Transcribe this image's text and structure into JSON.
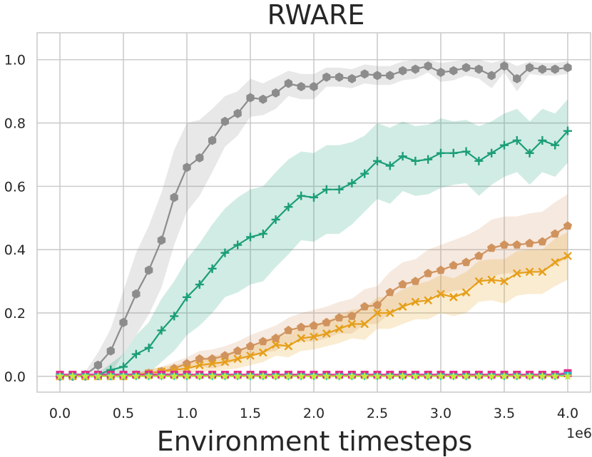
{
  "chart_data": {
    "type": "line",
    "title": "RWARE",
    "xlabel": "Environment timesteps",
    "ylabel": "",
    "x_offset_label": "1e6",
    "xlim": [
      -0.18,
      4.18
    ],
    "ylim": [
      -0.05,
      1.085
    ],
    "xticks": [
      0.0,
      0.5,
      1.0,
      1.5,
      2.0,
      2.5,
      3.0,
      3.5,
      4.0
    ],
    "xtick_labels": [
      "0.0",
      "0.5",
      "1.0",
      "1.5",
      "2.0",
      "2.5",
      "3.0",
      "3.5",
      "4.0"
    ],
    "yticks": [
      0.0,
      0.2,
      0.4,
      0.6,
      0.8,
      1.0
    ],
    "ytick_labels": [
      "0.0",
      "0.2",
      "0.4",
      "0.6",
      "0.8",
      "1.0"
    ],
    "grid": true,
    "x": [
      0.0,
      0.1,
      0.2,
      0.3,
      0.4,
      0.5,
      0.6,
      0.7,
      0.8,
      0.9,
      1.0,
      1.1,
      1.2,
      1.3,
      1.4,
      1.5,
      1.6,
      1.7,
      1.8,
      1.9,
      2.0,
      2.1,
      2.2,
      2.3,
      2.4,
      2.5,
      2.6,
      2.7,
      2.8,
      2.9,
      3.0,
      3.1,
      3.2,
      3.3,
      3.4,
      3.5,
      3.6,
      3.7,
      3.8,
      3.9,
      4.0
    ],
    "series": [
      {
        "color": "#8c8c8c",
        "marker": "hexagon",
        "values": [
          0.0,
          0.0,
          0.005,
          0.035,
          0.08,
          0.17,
          0.26,
          0.335,
          0.43,
          0.565,
          0.66,
          0.69,
          0.745,
          0.805,
          0.83,
          0.88,
          0.875,
          0.895,
          0.925,
          0.915,
          0.915,
          0.945,
          0.945,
          0.94,
          0.955,
          0.95,
          0.95,
          0.965,
          0.97,
          0.98,
          0.96,
          0.965,
          0.975,
          0.97,
          0.95,
          0.98,
          0.94,
          0.975,
          0.97,
          0.97,
          0.975
        ],
        "spread": [
          0.0,
          0.005,
          0.01,
          0.04,
          0.07,
          0.1,
          0.13,
          0.14,
          0.15,
          0.15,
          0.14,
          0.12,
          0.1,
          0.08,
          0.07,
          0.06,
          0.05,
          0.05,
          0.04,
          0.04,
          0.04,
          0.03,
          0.03,
          0.03,
          0.03,
          0.03,
          0.03,
          0.03,
          0.03,
          0.02,
          0.03,
          0.03,
          0.025,
          0.03,
          0.04,
          0.02,
          0.04,
          0.02,
          0.02,
          0.02,
          0.02
        ]
      },
      {
        "color": "#1b9e77",
        "marker": "plus",
        "values": [
          0.0,
          0.0,
          0.0,
          0.005,
          0.02,
          0.03,
          0.07,
          0.09,
          0.145,
          0.19,
          0.25,
          0.29,
          0.34,
          0.39,
          0.415,
          0.44,
          0.45,
          0.495,
          0.535,
          0.57,
          0.565,
          0.59,
          0.59,
          0.61,
          0.64,
          0.68,
          0.665,
          0.695,
          0.68,
          0.685,
          0.705,
          0.705,
          0.71,
          0.68,
          0.705,
          0.73,
          0.745,
          0.705,
          0.745,
          0.73,
          0.775
        ],
        "spread": [
          0.0,
          0.0,
          0.0,
          0.005,
          0.02,
          0.04,
          0.06,
          0.08,
          0.1,
          0.11,
          0.12,
          0.13,
          0.14,
          0.14,
          0.15,
          0.15,
          0.15,
          0.15,
          0.15,
          0.14,
          0.14,
          0.14,
          0.14,
          0.13,
          0.12,
          0.12,
          0.12,
          0.11,
          0.11,
          0.11,
          0.11,
          0.1,
          0.1,
          0.11,
          0.1,
          0.1,
          0.1,
          0.1,
          0.1,
          0.1,
          0.1
        ]
      },
      {
        "color": "#d0935e",
        "marker": "pentagon",
        "values": [
          0.0,
          0.0,
          0.0,
          0.0,
          0.0,
          0.0,
          0.005,
          0.01,
          0.015,
          0.025,
          0.04,
          0.055,
          0.055,
          0.065,
          0.08,
          0.095,
          0.11,
          0.12,
          0.145,
          0.155,
          0.16,
          0.17,
          0.185,
          0.19,
          0.22,
          0.225,
          0.265,
          0.29,
          0.3,
          0.325,
          0.335,
          0.35,
          0.36,
          0.38,
          0.405,
          0.415,
          0.415,
          0.42,
          0.425,
          0.45,
          0.475
        ],
        "spread": [
          0.0,
          0.0,
          0.0,
          0.0,
          0.0,
          0.0,
          0.005,
          0.01,
          0.015,
          0.02,
          0.02,
          0.025,
          0.03,
          0.03,
          0.03,
          0.035,
          0.035,
          0.04,
          0.04,
          0.045,
          0.05,
          0.05,
          0.05,
          0.055,
          0.055,
          0.06,
          0.065,
          0.07,
          0.07,
          0.075,
          0.08,
          0.08,
          0.085,
          0.085,
          0.09,
          0.09,
          0.09,
          0.095,
          0.095,
          0.1,
          0.1
        ]
      },
      {
        "color": "#e69f1a",
        "marker": "x",
        "values": [
          0.0,
          0.0,
          0.0,
          0.0,
          0.0,
          0.0,
          0.005,
          0.01,
          0.015,
          0.02,
          0.025,
          0.035,
          0.04,
          0.045,
          0.055,
          0.065,
          0.075,
          0.1,
          0.095,
          0.12,
          0.125,
          0.135,
          0.15,
          0.165,
          0.165,
          0.2,
          0.2,
          0.22,
          0.235,
          0.24,
          0.26,
          0.25,
          0.265,
          0.3,
          0.305,
          0.3,
          0.325,
          0.33,
          0.33,
          0.36,
          0.38
        ],
        "spread": [
          0.0,
          0.0,
          0.0,
          0.0,
          0.0,
          0.0,
          0.005,
          0.01,
          0.015,
          0.015,
          0.02,
          0.02,
          0.025,
          0.025,
          0.03,
          0.03,
          0.03,
          0.035,
          0.035,
          0.04,
          0.04,
          0.04,
          0.045,
          0.045,
          0.05,
          0.05,
          0.05,
          0.055,
          0.055,
          0.06,
          0.06,
          0.06,
          0.065,
          0.065,
          0.065,
          0.07,
          0.07,
          0.07,
          0.07,
          0.075,
          0.075
        ]
      },
      {
        "color": "#e7298a",
        "marker": "square",
        "values": [
          0.005,
          0.005,
          0.005,
          0.005,
          0.005,
          0.005,
          0.005,
          0.005,
          0.005,
          0.005,
          0.005,
          0.005,
          0.005,
          0.005,
          0.005,
          0.005,
          0.005,
          0.005,
          0.005,
          0.005,
          0.005,
          0.005,
          0.005,
          0.005,
          0.005,
          0.005,
          0.005,
          0.005,
          0.005,
          0.005,
          0.005,
          0.005,
          0.005,
          0.005,
          0.005,
          0.005,
          0.005,
          0.005,
          0.005,
          0.005,
          0.01
        ],
        "spread": [
          0.005,
          0.005,
          0.005,
          0.005,
          0.005,
          0.005,
          0.005,
          0.005,
          0.005,
          0.005,
          0.005,
          0.005,
          0.005,
          0.005,
          0.005,
          0.005,
          0.005,
          0.005,
          0.005,
          0.005,
          0.005,
          0.005,
          0.005,
          0.005,
          0.005,
          0.005,
          0.005,
          0.005,
          0.005,
          0.005,
          0.005,
          0.005,
          0.005,
          0.005,
          0.005,
          0.005,
          0.005,
          0.005,
          0.005,
          0.005,
          0.01
        ]
      },
      {
        "color": "#17becf",
        "marker": "triangle",
        "values": [
          0.0,
          0.0,
          0.0,
          0.0,
          0.0,
          0.0,
          0.0,
          0.0,
          0.0,
          0.0,
          0.0,
          0.0,
          0.0,
          0.0,
          0.0,
          0.0,
          0.0,
          0.0,
          0.0,
          0.0,
          0.0,
          0.0,
          0.0,
          0.0,
          0.0,
          0.0,
          0.0,
          0.0,
          0.0,
          0.0,
          0.0,
          0.0,
          0.0,
          0.0,
          0.0,
          0.0,
          0.0,
          0.0,
          0.0,
          0.0,
          0.005
        ],
        "spread": [
          0.002,
          0.002,
          0.002,
          0.002,
          0.002,
          0.002,
          0.002,
          0.002,
          0.002,
          0.002,
          0.002,
          0.002,
          0.002,
          0.002,
          0.002,
          0.002,
          0.002,
          0.002,
          0.002,
          0.002,
          0.002,
          0.002,
          0.002,
          0.002,
          0.002,
          0.002,
          0.002,
          0.002,
          0.002,
          0.002,
          0.002,
          0.002,
          0.002,
          0.002,
          0.002,
          0.002,
          0.002,
          0.002,
          0.002,
          0.002,
          0.004
        ]
      },
      {
        "color": "#c5e83a",
        "marker": "star",
        "values": [
          0.0,
          0.0,
          0.0,
          0.0,
          0.0,
          0.0,
          0.0,
          0.0,
          0.0,
          0.0,
          0.0,
          0.0,
          0.0,
          0.0,
          0.0,
          0.0,
          0.0,
          0.0,
          0.0,
          0.0,
          0.0,
          0.0,
          0.0,
          0.0,
          0.0,
          0.0,
          0.0,
          0.0,
          0.0,
          0.0,
          0.0,
          0.0,
          0.0,
          0.0,
          0.0,
          0.0,
          0.0,
          0.0,
          0.0,
          0.0,
          0.0
        ],
        "spread": [
          0.003,
          0.003,
          0.003,
          0.003,
          0.003,
          0.003,
          0.003,
          0.003,
          0.003,
          0.003,
          0.003,
          0.003,
          0.003,
          0.003,
          0.003,
          0.003,
          0.003,
          0.003,
          0.003,
          0.003,
          0.003,
          0.003,
          0.003,
          0.003,
          0.003,
          0.003,
          0.003,
          0.003,
          0.003,
          0.003,
          0.003,
          0.003,
          0.003,
          0.003,
          0.003,
          0.003,
          0.003,
          0.003,
          0.003,
          0.003,
          0.003
        ]
      }
    ]
  }
}
